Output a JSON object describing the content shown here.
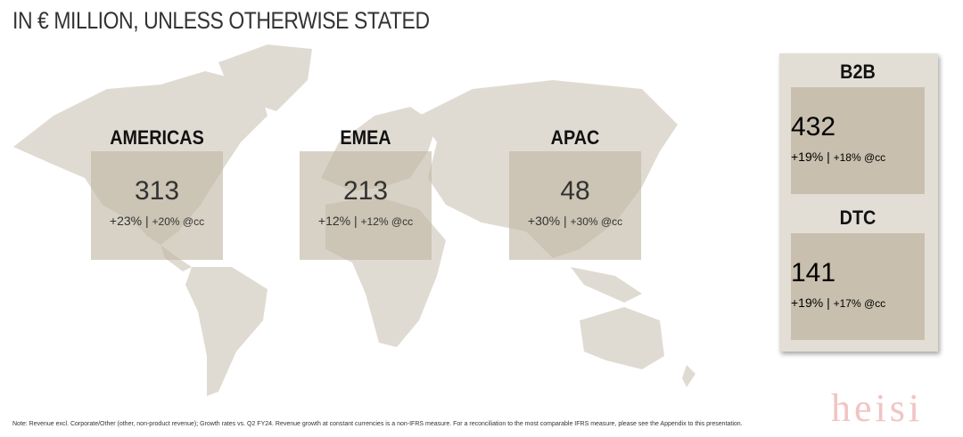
{
  "header": {
    "title": "IN € MILLION, UNLESS OTHERWISE STATED"
  },
  "regions": [
    {
      "label": "AMERICAS",
      "value": "313",
      "growth": "+23% |",
      "growth_cc": "+20% @cc"
    },
    {
      "label": "EMEA",
      "value": "213",
      "growth": "+12% |",
      "growth_cc": "+12% @cc"
    },
    {
      "label": "APAC",
      "value": "48",
      "growth": "+30% |",
      "growth_cc": "+30% @cc"
    }
  ],
  "channels": [
    {
      "label": "B2B",
      "value": "432",
      "growth": "+19% |",
      "growth_cc": "+18% @cc"
    },
    {
      "label": "DTC",
      "value": "141",
      "growth": "+19% |",
      "growth_cc": "+17% @cc"
    }
  ],
  "note": "Note: Revenue excl. Corporate/Other (other, non-product revenue); Growth rates vs. Q2 FY24. Revenue growth at constant currencies is a non-IFRS measure. For a reconciliation to the most comparable IFRS measure, please see the Appendix to this presentation.",
  "watermark": "heisi"
}
